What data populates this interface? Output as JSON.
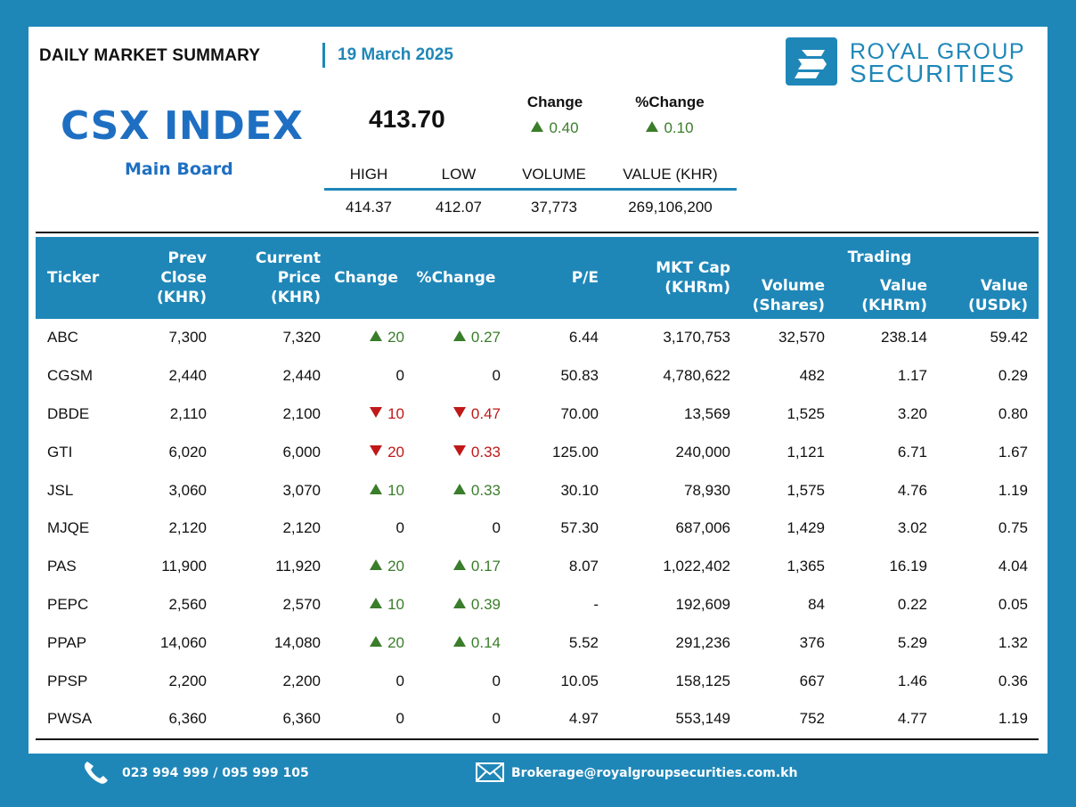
{
  "header": {
    "title": "DAILY MARKET SUMMARY",
    "date": "19 March 2025"
  },
  "logo": {
    "line1": "ROYAL GROUP",
    "line2": "SECURITIES"
  },
  "index": {
    "name": "CSX INDEX",
    "board": "Main Board",
    "value": "413.70",
    "change_label": "Change",
    "change": "0.40",
    "pct_change_label": "%Change",
    "pct_change": "0.10",
    "direction": "up",
    "stats_headers": [
      "HIGH",
      "LOW",
      "VOLUME",
      "VALUE (KHR)"
    ],
    "stats_values": [
      "414.37",
      "412.07",
      "37,773",
      "269,106,200"
    ]
  },
  "table": {
    "headers": {
      "ticker": "Ticker",
      "prev_close": [
        "Prev Close",
        "(KHR)"
      ],
      "current_price": [
        "Current Price",
        "(KHR)"
      ],
      "change": "Change",
      "pct_change": "%Change",
      "pe": "P/E",
      "mkt_cap": [
        "MKT Cap",
        "(KHRm)"
      ],
      "volume": [
        "Volume",
        "(Shares)"
      ],
      "trading_group": "Trading",
      "value_khr": [
        "Value",
        "(KHRm)"
      ],
      "value_usd": [
        "Value",
        "(USDk)"
      ]
    },
    "rows": [
      {
        "ticker": "ABC",
        "prev": "7,300",
        "cur": "7,320",
        "dir": "up",
        "chg": "20",
        "pct": "0.27",
        "pe": "6.44",
        "cap": "3,170,753",
        "vol": "32,570",
        "val_khr": "238.14",
        "val_usd": "59.42"
      },
      {
        "ticker": "CGSM",
        "prev": "2,440",
        "cur": "2,440",
        "dir": "flat",
        "chg": "0",
        "pct": "0",
        "pe": "50.83",
        "cap": "4,780,622",
        "vol": "482",
        "val_khr": "1.17",
        "val_usd": "0.29"
      },
      {
        "ticker": "DBDE",
        "prev": "2,110",
        "cur": "2,100",
        "dir": "down",
        "chg": "10",
        "pct": "0.47",
        "pe": "70.00",
        "cap": "13,569",
        "vol": "1,525",
        "val_khr": "3.20",
        "val_usd": "0.80"
      },
      {
        "ticker": "GTI",
        "prev": "6,020",
        "cur": "6,000",
        "dir": "down",
        "chg": "20",
        "pct": "0.33",
        "pe": "125.00",
        "cap": "240,000",
        "vol": "1,121",
        "val_khr": "6.71",
        "val_usd": "1.67"
      },
      {
        "ticker": "JSL",
        "prev": "3,060",
        "cur": "3,070",
        "dir": "up",
        "chg": "10",
        "pct": "0.33",
        "pe": "30.10",
        "cap": "78,930",
        "vol": "1,575",
        "val_khr": "4.76",
        "val_usd": "1.19"
      },
      {
        "ticker": "MJQE",
        "prev": "2,120",
        "cur": "2,120",
        "dir": "flat",
        "chg": "0",
        "pct": "0",
        "pe": "57.30",
        "cap": "687,006",
        "vol": "1,429",
        "val_khr": "3.02",
        "val_usd": "0.75"
      },
      {
        "ticker": "PAS",
        "prev": "11,900",
        "cur": "11,920",
        "dir": "up",
        "chg": "20",
        "pct": "0.17",
        "pe": "8.07",
        "cap": "1,022,402",
        "vol": "1,365",
        "val_khr": "16.19",
        "val_usd": "4.04"
      },
      {
        "ticker": "PEPC",
        "prev": "2,560",
        "cur": "2,570",
        "dir": "up",
        "chg": "10",
        "pct": "0.39",
        "pe": "-",
        "cap": "192,609",
        "vol": "84",
        "val_khr": "0.22",
        "val_usd": "0.05"
      },
      {
        "ticker": "PPAP",
        "prev": "14,060",
        "cur": "14,080",
        "dir": "up",
        "chg": "20",
        "pct": "0.14",
        "pe": "5.52",
        "cap": "291,236",
        "vol": "376",
        "val_khr": "5.29",
        "val_usd": "1.32"
      },
      {
        "ticker": "PPSP",
        "prev": "2,200",
        "cur": "2,200",
        "dir": "flat",
        "chg": "0",
        "pct": "0",
        "pe": "10.05",
        "cap": "158,125",
        "vol": "667",
        "val_khr": "1.46",
        "val_usd": "0.36"
      },
      {
        "ticker": "PWSA",
        "prev": "6,360",
        "cur": "6,360",
        "dir": "flat",
        "chg": "0",
        "pct": "0",
        "pe": "4.97",
        "cap": "553,149",
        "vol": "752",
        "val_khr": "4.77",
        "val_usd": "1.19"
      }
    ]
  },
  "footer": {
    "phone": "023 994 999 / 095 999 105",
    "email": "Brokerage@royalgroupsecurities.com.kh"
  },
  "colors": {
    "brand": "#1f87b8",
    "title_blue": "#1e6fc2",
    "up": "#3a7d2a",
    "down": "#c01818"
  },
  "icons": [
    "phone-icon",
    "mail-icon",
    "triangle-up-icon",
    "triangle-down-icon",
    "logo-icon"
  ]
}
